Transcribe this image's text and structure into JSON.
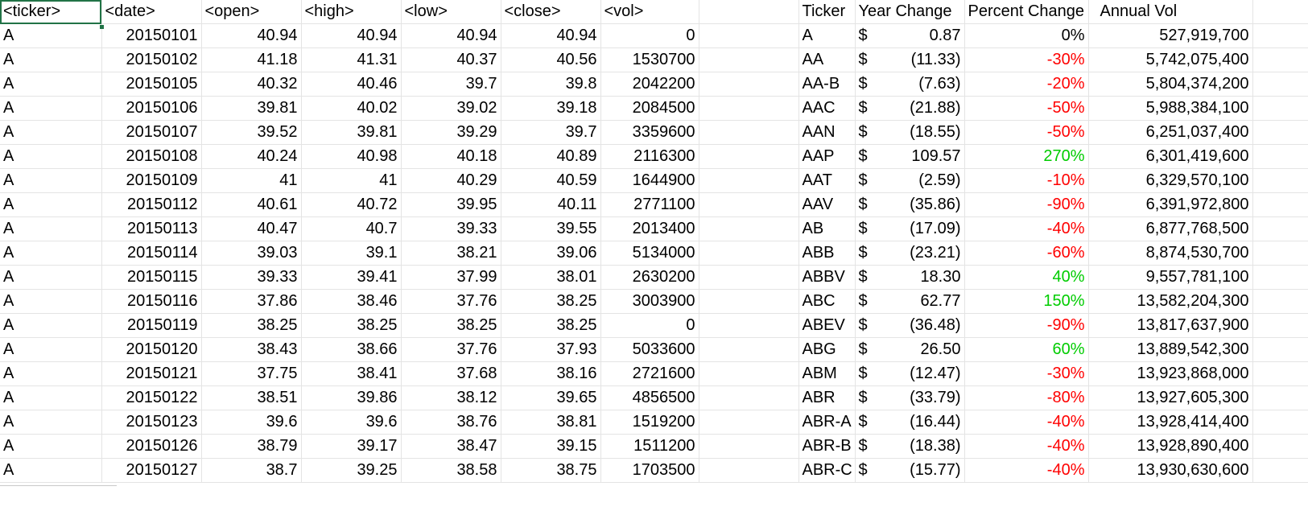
{
  "headers": {
    "ticker": "<ticker>",
    "date": "<date>",
    "open": "<open>",
    "high": "<high>",
    "low": "<low>",
    "close": "<close>",
    "vol": "<vol>",
    "s_ticker": "Ticker",
    "s_year_change": "Year Change",
    "s_percent_change": "Percent Change",
    "s_annual_vol": "Annual Vol"
  },
  "raw_rows": [
    [
      "A",
      "20150101",
      "40.94",
      "40.94",
      "40.94",
      "40.94",
      "0"
    ],
    [
      "A",
      "20150102",
      "41.18",
      "41.31",
      "40.37",
      "40.56",
      "1530700"
    ],
    [
      "A",
      "20150105",
      "40.32",
      "40.46",
      "39.7",
      "39.8",
      "2042200"
    ],
    [
      "A",
      "20150106",
      "39.81",
      "40.02",
      "39.02",
      "39.18",
      "2084500"
    ],
    [
      "A",
      "20150107",
      "39.52",
      "39.81",
      "39.29",
      "39.7",
      "3359600"
    ],
    [
      "A",
      "20150108",
      "40.24",
      "40.98",
      "40.18",
      "40.89",
      "2116300"
    ],
    [
      "A",
      "20150109",
      "41",
      "41",
      "40.29",
      "40.59",
      "1644900"
    ],
    [
      "A",
      "20150112",
      "40.61",
      "40.72",
      "39.95",
      "40.11",
      "2771100"
    ],
    [
      "A",
      "20150113",
      "40.47",
      "40.7",
      "39.33",
      "39.55",
      "2013400"
    ],
    [
      "A",
      "20150114",
      "39.03",
      "39.1",
      "38.21",
      "39.06",
      "5134000"
    ],
    [
      "A",
      "20150115",
      "39.33",
      "39.41",
      "37.99",
      "38.01",
      "2630200"
    ],
    [
      "A",
      "20150116",
      "37.86",
      "38.46",
      "37.76",
      "38.25",
      "3003900"
    ],
    [
      "A",
      "20150119",
      "38.25",
      "38.25",
      "38.25",
      "38.25",
      "0"
    ],
    [
      "A",
      "20150120",
      "38.43",
      "38.66",
      "37.76",
      "37.93",
      "5033600"
    ],
    [
      "A",
      "20150121",
      "37.75",
      "38.41",
      "37.68",
      "38.16",
      "2721600"
    ],
    [
      "A",
      "20150122",
      "38.51",
      "39.86",
      "38.12",
      "39.65",
      "4856500"
    ],
    [
      "A",
      "20150123",
      "39.6",
      "39.6",
      "38.76",
      "38.81",
      "1519200"
    ],
    [
      "A",
      "20150126",
      "38.79",
      "39.17",
      "38.47",
      "39.15",
      "1511200"
    ],
    [
      "A",
      "20150127",
      "38.7",
      "39.25",
      "38.58",
      "38.75",
      "1703500"
    ]
  ],
  "summary_rows": [
    {
      "ticker": "A",
      "currency": "$",
      "year_change": "0.87",
      "percent_change": "0%",
      "sign": "zero",
      "annual_vol": "527,919,700"
    },
    {
      "ticker": "AA",
      "currency": "$",
      "year_change": "(11.33)",
      "percent_change": "-30%",
      "sign": "neg",
      "annual_vol": "5,742,075,400"
    },
    {
      "ticker": "AA-B",
      "currency": "$",
      "year_change": "(7.63)",
      "percent_change": "-20%",
      "sign": "neg",
      "annual_vol": "5,804,374,200"
    },
    {
      "ticker": "AAC",
      "currency": "$",
      "year_change": "(21.88)",
      "percent_change": "-50%",
      "sign": "neg",
      "annual_vol": "5,988,384,100"
    },
    {
      "ticker": "AAN",
      "currency": "$",
      "year_change": "(18.55)",
      "percent_change": "-50%",
      "sign": "neg",
      "annual_vol": "6,251,037,400"
    },
    {
      "ticker": "AAP",
      "currency": "$",
      "year_change": "109.57",
      "percent_change": "270%",
      "sign": "pos",
      "annual_vol": "6,301,419,600"
    },
    {
      "ticker": "AAT",
      "currency": "$",
      "year_change": "(2.59)",
      "percent_change": "-10%",
      "sign": "neg",
      "annual_vol": "6,329,570,100"
    },
    {
      "ticker": "AAV",
      "currency": "$",
      "year_change": "(35.86)",
      "percent_change": "-90%",
      "sign": "neg",
      "annual_vol": "6,391,972,800"
    },
    {
      "ticker": "AB",
      "currency": "$",
      "year_change": "(17.09)",
      "percent_change": "-40%",
      "sign": "neg",
      "annual_vol": "6,877,768,500"
    },
    {
      "ticker": "ABB",
      "currency": "$",
      "year_change": "(23.21)",
      "percent_change": "-60%",
      "sign": "neg",
      "annual_vol": "8,874,530,700"
    },
    {
      "ticker": "ABBV",
      "currency": "$",
      "year_change": "18.30",
      "percent_change": "40%",
      "sign": "pos",
      "annual_vol": "9,557,781,100"
    },
    {
      "ticker": "ABC",
      "currency": "$",
      "year_change": "62.77",
      "percent_change": "150%",
      "sign": "pos",
      "annual_vol": "13,582,204,300"
    },
    {
      "ticker": "ABEV",
      "currency": "$",
      "year_change": "(36.48)",
      "percent_change": "-90%",
      "sign": "neg",
      "annual_vol": "13,817,637,900"
    },
    {
      "ticker": "ABG",
      "currency": "$",
      "year_change": "26.50",
      "percent_change": "60%",
      "sign": "pos",
      "annual_vol": "13,889,542,300"
    },
    {
      "ticker": "ABM",
      "currency": "$",
      "year_change": "(12.47)",
      "percent_change": "-30%",
      "sign": "neg",
      "annual_vol": "13,923,868,000"
    },
    {
      "ticker": "ABR",
      "currency": "$",
      "year_change": "(33.79)",
      "percent_change": "-80%",
      "sign": "neg",
      "annual_vol": "13,927,605,300"
    },
    {
      "ticker": "ABR-A",
      "currency": "$",
      "year_change": "(16.44)",
      "percent_change": "-40%",
      "sign": "neg",
      "annual_vol": "13,928,414,400"
    },
    {
      "ticker": "ABR-B",
      "currency": "$",
      "year_change": "(18.38)",
      "percent_change": "-40%",
      "sign": "neg",
      "annual_vol": "13,928,890,400"
    },
    {
      "ticker": "ABR-C",
      "currency": "$",
      "year_change": "(15.77)",
      "percent_change": "-40%",
      "sign": "neg",
      "annual_vol": "13,930,630,600"
    }
  ],
  "colors": {
    "negative": "#ff0000",
    "positive": "#00cc00",
    "selection": "#217346",
    "gridline": "#e4e4e4"
  }
}
